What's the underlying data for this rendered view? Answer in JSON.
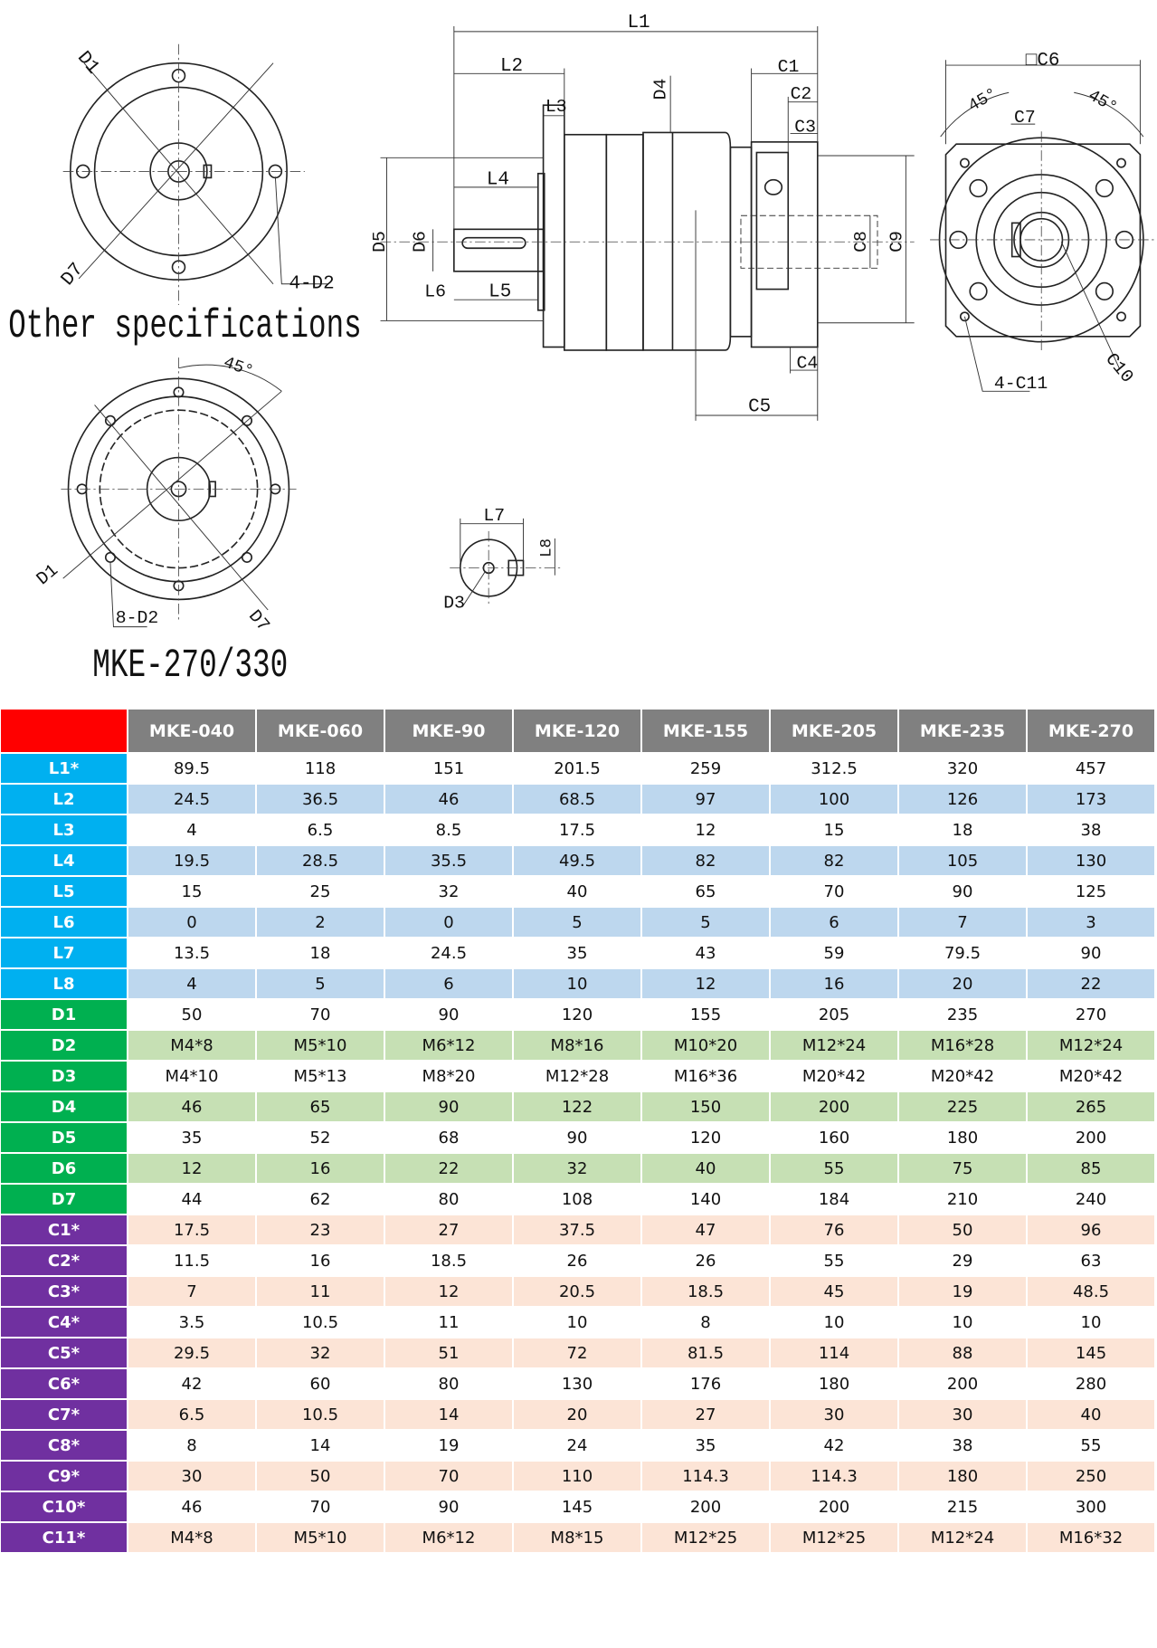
{
  "colors": {
    "corner": "#ff0000",
    "header": "#808080",
    "L_label": "#00b0f0",
    "L_shade": "#bdd7ee",
    "D_label": "#00b050",
    "D_shade": "#c6e0b4",
    "C_label": "#7030a0",
    "C_shade": "#fce4d6"
  },
  "drawing": {
    "top_flange": {
      "d1": "D1",
      "d7": "D7",
      "d2": "4-D2"
    },
    "other_specs": "Other specifications",
    "bottom_flange": {
      "angle": "45°",
      "d1": "D1",
      "d2": "8-D2",
      "d7": "D7",
      "model": "MKE-270/330"
    },
    "side": {
      "l1": "L1",
      "l2": "L2",
      "l3": "L3",
      "l4": "L4",
      "l5": "L5",
      "l6": "L6",
      "d4": "D4",
      "d5": "D5",
      "d6": "D6",
      "c1": "C1",
      "c2": "C2",
      "c3": "C3",
      "c4": "C4",
      "c5": "C5",
      "c8": "C8",
      "c9": "C9"
    },
    "front": {
      "c6": "□C6",
      "angle_left": "45°",
      "angle_right": "45°",
      "c7": "C7",
      "c11": "4-C11",
      "c10": "C10"
    },
    "key": {
      "l7": "L7",
      "l8": "L8",
      "d3": "D3"
    }
  },
  "table": {
    "columns": [
      "MKE-040",
      "MKE-060",
      "MKE-90",
      "MKE-120",
      "MKE-155",
      "MKE-205",
      "MKE-235",
      "MKE-270"
    ],
    "rows": [
      {
        "label": "L1*",
        "group": "L",
        "values": [
          "89.5",
          "118",
          "151",
          "201.5",
          "259",
          "312.5",
          "320",
          "457"
        ]
      },
      {
        "label": "L2",
        "group": "L",
        "values": [
          "24.5",
          "36.5",
          "46",
          "68.5",
          "97",
          "100",
          "126",
          "173"
        ]
      },
      {
        "label": "L3",
        "group": "L",
        "values": [
          "4",
          "6.5",
          "8.5",
          "17.5",
          "12",
          "15",
          "18",
          "38"
        ]
      },
      {
        "label": "L4",
        "group": "L",
        "values": [
          "19.5",
          "28.5",
          "35.5",
          "49.5",
          "82",
          "82",
          "105",
          "130"
        ]
      },
      {
        "label": "L5",
        "group": "L",
        "values": [
          "15",
          "25",
          "32",
          "40",
          "65",
          "70",
          "90",
          "125"
        ]
      },
      {
        "label": "L6",
        "group": "L",
        "values": [
          "0",
          "2",
          "0",
          "5",
          "5",
          "6",
          "7",
          "3"
        ]
      },
      {
        "label": "L7",
        "group": "L",
        "values": [
          "13.5",
          "18",
          "24.5",
          "35",
          "43",
          "59",
          "79.5",
          "90"
        ]
      },
      {
        "label": "L8",
        "group": "L",
        "values": [
          "4",
          "5",
          "6",
          "10",
          "12",
          "16",
          "20",
          "22"
        ]
      },
      {
        "label": "D1",
        "group": "D",
        "values": [
          "50",
          "70",
          "90",
          "120",
          "155",
          "205",
          "235",
          "270"
        ]
      },
      {
        "label": "D2",
        "group": "D",
        "values": [
          "M4*8",
          "M5*10",
          "M6*12",
          "M8*16",
          "M10*20",
          "M12*24",
          "M16*28",
          "M12*24"
        ]
      },
      {
        "label": "D3",
        "group": "D",
        "values": [
          "M4*10",
          "M5*13",
          "M8*20",
          "M12*28",
          "M16*36",
          "M20*42",
          "M20*42",
          "M20*42"
        ]
      },
      {
        "label": "D4",
        "group": "D",
        "values": [
          "46",
          "65",
          "90",
          "122",
          "150",
          "200",
          "225",
          "265"
        ]
      },
      {
        "label": "D5",
        "group": "D",
        "values": [
          "35",
          "52",
          "68",
          "90",
          "120",
          "160",
          "180",
          "200"
        ]
      },
      {
        "label": "D6",
        "group": "D",
        "values": [
          "12",
          "16",
          "22",
          "32",
          "40",
          "55",
          "75",
          "85"
        ]
      },
      {
        "label": "D7",
        "group": "D",
        "values": [
          "44",
          "62",
          "80",
          "108",
          "140",
          "184",
          "210",
          "240"
        ]
      },
      {
        "label": "C1*",
        "group": "C",
        "values": [
          "17.5",
          "23",
          "27",
          "37.5",
          "47",
          "76",
          "50",
          "96"
        ]
      },
      {
        "label": "C2*",
        "group": "C",
        "values": [
          "11.5",
          "16",
          "18.5",
          "26",
          "26",
          "55",
          "29",
          "63"
        ]
      },
      {
        "label": "C3*",
        "group": "C",
        "values": [
          "7",
          "11",
          "12",
          "20.5",
          "18.5",
          "45",
          "19",
          "48.5"
        ]
      },
      {
        "label": "C4*",
        "group": "C",
        "values": [
          "3.5",
          "10.5",
          "11",
          "10",
          "8",
          "10",
          "10",
          "10"
        ]
      },
      {
        "label": "C5*",
        "group": "C",
        "values": [
          "29.5",
          "32",
          "51",
          "72",
          "81.5",
          "114",
          "88",
          "145"
        ]
      },
      {
        "label": "C6*",
        "group": "C",
        "values": [
          "42",
          "60",
          "80",
          "130",
          "176",
          "180",
          "200",
          "280"
        ]
      },
      {
        "label": "C7*",
        "group": "C",
        "values": [
          "6.5",
          "10.5",
          "14",
          "20",
          "27",
          "30",
          "30",
          "40"
        ]
      },
      {
        "label": "C8*",
        "group": "C",
        "values": [
          "8",
          "14",
          "19",
          "24",
          "35",
          "42",
          "38",
          "55"
        ]
      },
      {
        "label": "C9*",
        "group": "C",
        "values": [
          "30",
          "50",
          "70",
          "110",
          "114.3",
          "114.3",
          "180",
          "250"
        ]
      },
      {
        "label": "C10*",
        "group": "C",
        "values": [
          "46",
          "70",
          "90",
          "145",
          "200",
          "200",
          "215",
          "300"
        ]
      },
      {
        "label": "C11*",
        "group": "C",
        "values": [
          "M4*8",
          "M5*10",
          "M6*12",
          "M8*15",
          "M12*25",
          "M12*25",
          "M12*24",
          "M16*32"
        ]
      }
    ]
  }
}
